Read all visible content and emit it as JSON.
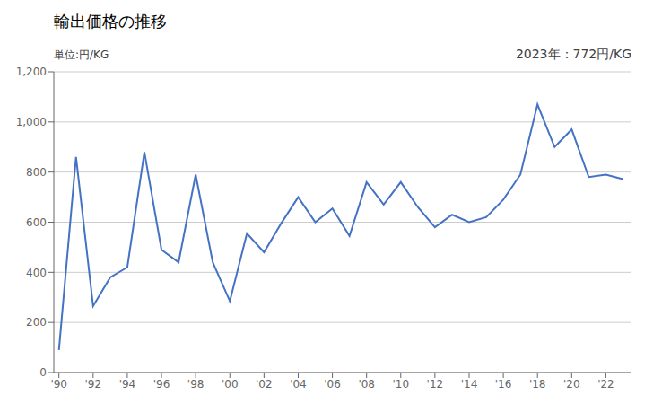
{
  "chart_data": {
    "type": "line",
    "title": "輸出価格の推移",
    "ylabel": "単位:円/KG",
    "annotation": "2023年：772円/KG",
    "x": [
      1990,
      1991,
      1992,
      1993,
      1994,
      1995,
      1996,
      1997,
      1998,
      1999,
      2000,
      2001,
      2002,
      2003,
      2004,
      2005,
      2006,
      2007,
      2008,
      2009,
      2010,
      2011,
      2012,
      2013,
      2014,
      2015,
      2016,
      2017,
      2018,
      2019,
      2020,
      2021,
      2022,
      2023
    ],
    "values": [
      90,
      860,
      265,
      380,
      420,
      880,
      490,
      440,
      790,
      440,
      285,
      555,
      480,
      595,
      700,
      600,
      655,
      545,
      760,
      670,
      760,
      660,
      580,
      630,
      600,
      620,
      690,
      790,
      1070,
      900,
      970,
      780,
      790,
      772
    ],
    "color": "#4472C4",
    "xlim": [
      1989.7,
      2023.5
    ],
    "xticks": [
      {
        "value": 1990,
        "label": "'90"
      },
      {
        "value": 1992,
        "label": "'92"
      },
      {
        "value": 1994,
        "label": "'94"
      },
      {
        "value": 1996,
        "label": "'96"
      },
      {
        "value": 1998,
        "label": "'98"
      },
      {
        "value": 2000,
        "label": "'00"
      },
      {
        "value": 2002,
        "label": "'02"
      },
      {
        "value": 2004,
        "label": "'04"
      },
      {
        "value": 2006,
        "label": "'06"
      },
      {
        "value": 2008,
        "label": "'08"
      },
      {
        "value": 2010,
        "label": "'10"
      },
      {
        "value": 2012,
        "label": "'12"
      },
      {
        "value": 2014,
        "label": "'14"
      },
      {
        "value": 2016,
        "label": "'16"
      },
      {
        "value": 2018,
        "label": "'18"
      },
      {
        "value": 2020,
        "label": "'20"
      },
      {
        "value": 2022,
        "label": "'22"
      }
    ],
    "ylim": [
      0,
      1200
    ],
    "yticks": [
      0,
      200,
      400,
      600,
      800,
      {
        "value": 1000,
        "label": "1,000"
      },
      {
        "value": 1200,
        "label": "1,200"
      }
    ],
    "grid": true
  }
}
